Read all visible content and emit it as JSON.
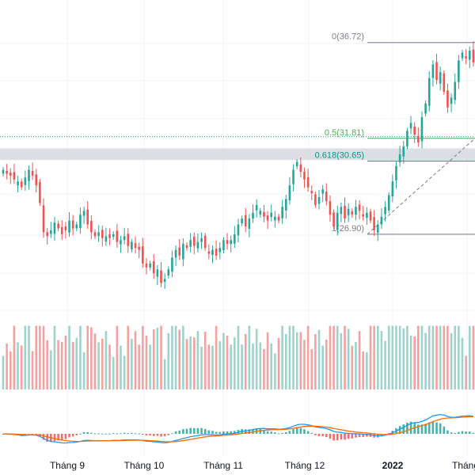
{
  "colors": {
    "up": "#26a69a",
    "down": "#ef5350",
    "up_volume": "#9ed3cc",
    "down_volume": "#f2a3a1",
    "fib_0": "#787b86",
    "fib_05": "#4caf50",
    "fib_0618": "#009688",
    "fib_1": "#787b86",
    "resistance_zone": "#d1d4dc",
    "macd_line": "#2196f3",
    "signal_line": "#ff6d00",
    "price_line": "#26a69a",
    "grid": "#f0f3fa",
    "text": "#131722"
  },
  "fib_levels": [
    {
      "label": "0(36.72)",
      "ratio": 0,
      "price": 36.72,
      "color_key": "fib_0"
    },
    {
      "label": "0.5(31.81)",
      "ratio": 0.5,
      "price": 31.81,
      "color_key": "fib_05"
    },
    {
      "label": "0.618(30.65)",
      "ratio": 0.618,
      "price": 30.65,
      "color_key": "fib_0618"
    },
    {
      "label": "1(26.90)",
      "ratio": 1,
      "price": 26.9,
      "color_key": "fib_1"
    }
  ],
  "chart_data": {
    "type": "candlestick",
    "x_axis_labels": [
      "Tháng 9",
      "Tháng 10",
      "Tháng 11",
      "Tháng 12",
      "2022",
      "Tháng"
    ],
    "x_axis_bold": [
      false,
      false,
      false,
      false,
      true,
      false
    ],
    "grid": true,
    "panels": [
      "price",
      "volume",
      "macd"
    ],
    "resistance_zone": [
      30.7,
      31.3
    ],
    "ylim": [
      23.0,
      38.9
    ],
    "candles_close": [
      30.2,
      30.0,
      29.9,
      29.7,
      29.6,
      29.3,
      29.8,
      30.2,
      29.9,
      29.4,
      28.5,
      27.0,
      26.8,
      27.1,
      27.5,
      27.2,
      26.9,
      27.1,
      27.6,
      27.2,
      27.4,
      27.9,
      28.1,
      27.4,
      27.0,
      26.8,
      27.0,
      26.7,
      26.8,
      26.7,
      26.9,
      26.5,
      26.6,
      26.8,
      26.3,
      26.5,
      26.2,
      26.1,
      25.4,
      25.2,
      25.4,
      24.9,
      25.1,
      24.4,
      24.6,
      25.1,
      25.7,
      26.1,
      25.8,
      26.4,
      26.2,
      26.6,
      26.3,
      26.5,
      26.7,
      26.2,
      25.9,
      26.1,
      25.8,
      26.2,
      26.6,
      26.4,
      26.6,
      26.9,
      27.4,
      27.7,
      27.3,
      27.7,
      28.0,
      28.4,
      28.1,
      27.8,
      27.6,
      28.0,
      27.8,
      27.6,
      28.3,
      28.7,
      29.4,
      30.2,
      30.6,
      30.1,
      29.7,
      29.3,
      29.0,
      28.4,
      28.8,
      29.2,
      28.6,
      27.9,
      27.3,
      28.0,
      28.3,
      27.7,
      28.2,
      27.9,
      28.3,
      28.1,
      27.8,
      28.0,
      27.6,
      27.1,
      27.4,
      27.8,
      28.3,
      28.9,
      29.6,
      30.4,
      31.0,
      31.4,
      32.2,
      32.6,
      32.0,
      31.6,
      32.9,
      33.6,
      34.9,
      35.6,
      34.8,
      35.2,
      34.2,
      33.4,
      33.9,
      34.7,
      35.8,
      36.2,
      35.9,
      36.3,
      35.7
    ]
  }
}
